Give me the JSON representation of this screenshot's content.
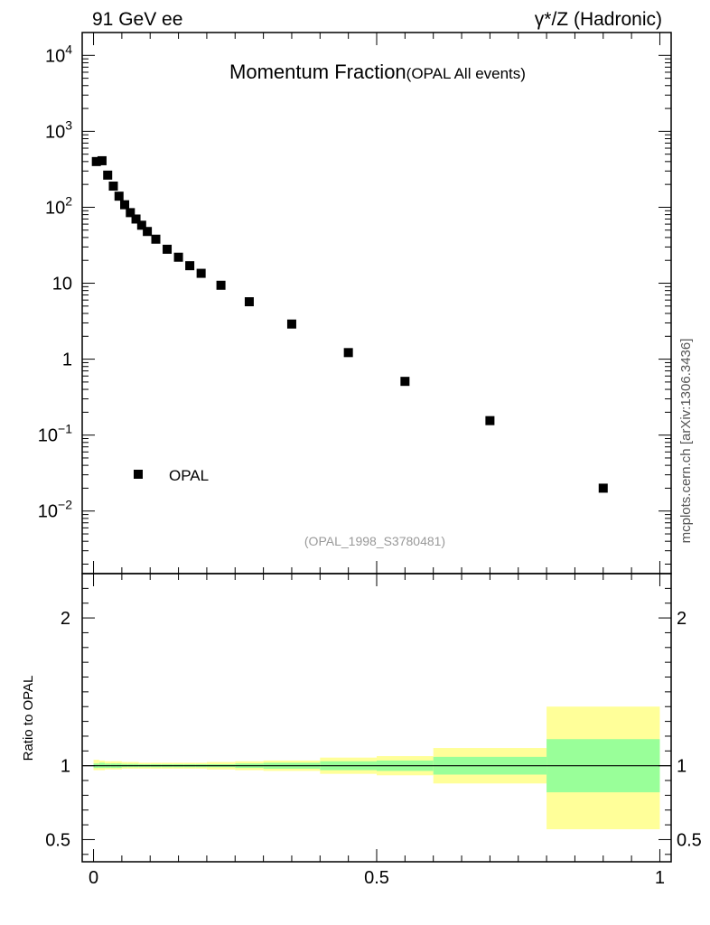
{
  "header": {
    "left": "91 GeV ee",
    "right": "γ*/Z (Hadronic)"
  },
  "side_label": "mcplots.cern.ch [arXiv:1306.3436]",
  "colors": {
    "band_outer": "#ffff99",
    "band_inner": "#99ff99",
    "marker": "#000000",
    "source_text": "#999999"
  },
  "chart_data": [
    {
      "type": "scatter",
      "title": "Momentum Fraction",
      "subtitle": "(OPAL All events)",
      "source": "(OPAL_1998_S3780481)",
      "yscale": "log",
      "xlim": [
        -0.02,
        1.02
      ],
      "ylim": [
        0.0015,
        20000
      ],
      "ytick_labels": [
        {
          "value": 10000,
          "base": "10",
          "exp": "4"
        },
        {
          "value": 1000,
          "base": "10",
          "exp": "3"
        },
        {
          "value": 100,
          "base": "10",
          "exp": "2"
        },
        {
          "value": 10,
          "base": "10",
          "exp": ""
        },
        {
          "value": 1,
          "base": "1",
          "exp": ""
        },
        {
          "value": 0.1,
          "base": "10",
          "exp": "−1"
        },
        {
          "value": 0.01,
          "base": "10",
          "exp": "−2"
        }
      ],
      "legend": {
        "position": "bottom-left",
        "label": "OPAL"
      },
      "series": [
        {
          "name": "OPAL",
          "marker": "square",
          "x": [
            0.005,
            0.015,
            0.025,
            0.035,
            0.045,
            0.055,
            0.065,
            0.075,
            0.085,
            0.095,
            0.11,
            0.13,
            0.15,
            0.17,
            0.19,
            0.225,
            0.275,
            0.35,
            0.45,
            0.55,
            0.7,
            0.9
          ],
          "y": [
            400,
            410,
            265,
            190,
            140,
            108,
            85,
            70,
            58,
            48,
            38,
            28,
            22,
            17,
            13.5,
            9.4,
            5.7,
            2.9,
            1.22,
            0.51,
            0.155,
            0.02
          ]
        }
      ]
    },
    {
      "type": "area",
      "ylabel": "Ratio to OPAL",
      "xlim": [
        -0.02,
        1.02
      ],
      "ylim": [
        0.35,
        2.3
      ],
      "ytick_labels": [
        {
          "value": 2,
          "label": "2"
        },
        {
          "value": 1,
          "label": "1"
        },
        {
          "value": 0.5,
          "label": "0.5"
        }
      ],
      "xtick_labels": [
        {
          "value": 0,
          "label": "0"
        },
        {
          "value": 0.5,
          "label": "0.5"
        },
        {
          "value": 1,
          "label": "1"
        }
      ],
      "reference_line": 1,
      "bands": [
        {
          "x0": 0.0,
          "x1": 0.01,
          "inner": [
            0.985,
            1.015
          ],
          "outer": [
            0.97,
            1.04
          ]
        },
        {
          "x0": 0.01,
          "x1": 0.02,
          "inner": [
            0.985,
            1.02
          ],
          "outer": [
            0.97,
            1.035
          ]
        },
        {
          "x0": 0.02,
          "x1": 0.03,
          "inner": [
            0.985,
            1.015
          ],
          "outer": [
            0.975,
            1.03
          ]
        },
        {
          "x0": 0.03,
          "x1": 0.04,
          "inner": [
            0.985,
            1.015
          ],
          "outer": [
            0.975,
            1.03
          ]
        },
        {
          "x0": 0.04,
          "x1": 0.05,
          "inner": [
            0.985,
            1.015
          ],
          "outer": [
            0.975,
            1.03
          ]
        },
        {
          "x0": 0.05,
          "x1": 0.06,
          "inner": [
            0.99,
            1.012
          ],
          "outer": [
            0.98,
            1.025
          ]
        },
        {
          "x0": 0.06,
          "x1": 0.07,
          "inner": [
            0.99,
            1.012
          ],
          "outer": [
            0.98,
            1.025
          ]
        },
        {
          "x0": 0.07,
          "x1": 0.08,
          "inner": [
            0.99,
            1.012
          ],
          "outer": [
            0.98,
            1.025
          ]
        },
        {
          "x0": 0.08,
          "x1": 0.09,
          "inner": [
            0.99,
            1.01
          ],
          "outer": [
            0.98,
            1.02
          ]
        },
        {
          "x0": 0.09,
          "x1": 0.1,
          "inner": [
            0.99,
            1.01
          ],
          "outer": [
            0.98,
            1.02
          ]
        },
        {
          "x0": 0.1,
          "x1": 0.12,
          "inner": [
            0.99,
            1.01
          ],
          "outer": [
            0.98,
            1.02
          ]
        },
        {
          "x0": 0.12,
          "x1": 0.14,
          "inner": [
            0.99,
            1.01
          ],
          "outer": [
            0.98,
            1.02
          ]
        },
        {
          "x0": 0.14,
          "x1": 0.16,
          "inner": [
            0.99,
            1.01
          ],
          "outer": [
            0.98,
            1.02
          ]
        },
        {
          "x0": 0.16,
          "x1": 0.18,
          "inner": [
            0.99,
            1.01
          ],
          "outer": [
            0.98,
            1.02
          ]
        },
        {
          "x0": 0.18,
          "x1": 0.2,
          "inner": [
            0.99,
            1.01
          ],
          "outer": [
            0.98,
            1.02
          ]
        },
        {
          "x0": 0.2,
          "x1": 0.25,
          "inner": [
            0.99,
            1.01
          ],
          "outer": [
            0.975,
            1.025
          ]
        },
        {
          "x0": 0.25,
          "x1": 0.3,
          "inner": [
            0.985,
            1.015
          ],
          "outer": [
            0.97,
            1.03
          ]
        },
        {
          "x0": 0.3,
          "x1": 0.4,
          "inner": [
            0.98,
            1.02
          ],
          "outer": [
            0.965,
            1.035
          ]
        },
        {
          "x0": 0.4,
          "x1": 0.5,
          "inner": [
            0.97,
            1.03
          ],
          "outer": [
            0.945,
            1.055
          ]
        },
        {
          "x0": 0.5,
          "x1": 0.6,
          "inner": [
            0.965,
            1.035
          ],
          "outer": [
            0.935,
            1.065
          ]
        },
        {
          "x0": 0.6,
          "x1": 0.8,
          "inner": [
            0.94,
            1.06
          ],
          "outer": [
            0.88,
            1.12
          ]
        },
        {
          "x0": 0.8,
          "x1": 1.0,
          "inner": [
            0.82,
            1.18
          ],
          "outer": [
            0.57,
            1.4
          ]
        }
      ]
    }
  ]
}
